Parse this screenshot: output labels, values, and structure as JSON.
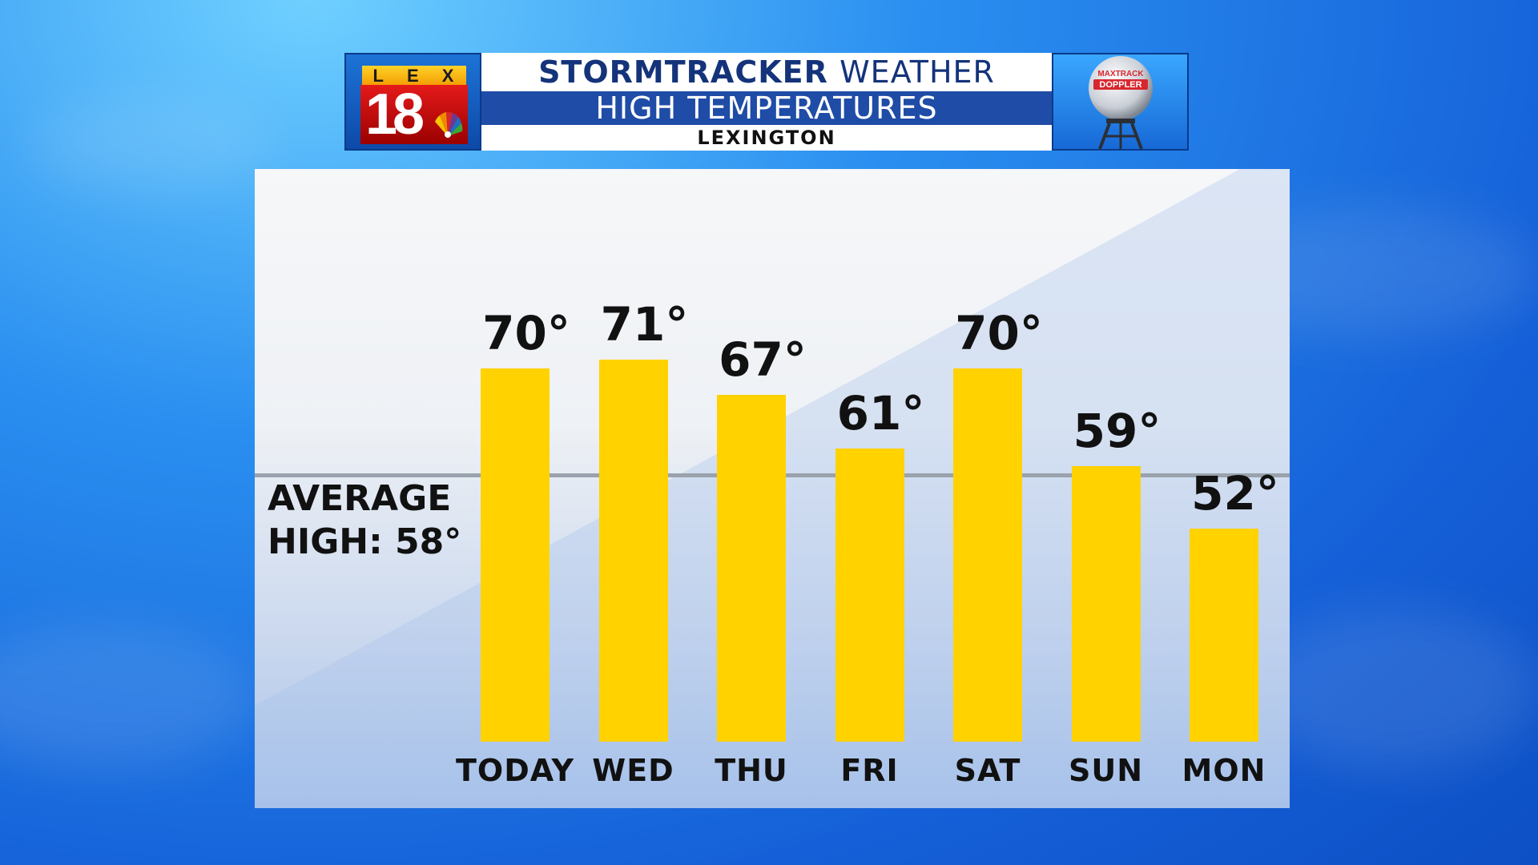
{
  "banner": {
    "logo_letters": [
      "L",
      "E",
      "X"
    ],
    "logo_number": "18",
    "title_bold": "STORMTRACKER",
    "title_light": "WEATHER",
    "subtitle": "HIGH TEMPERATURES",
    "location": "LEXINGTON",
    "radar_text_1": "MAXTRACK",
    "radar_text_2": "DOPPLER"
  },
  "average": {
    "label": "AVERAGE\nHIGH: 58°",
    "value": 58
  },
  "chart_data": {
    "type": "bar",
    "categories": [
      "TODAY",
      "WED",
      "THU",
      "FRI",
      "SAT",
      "SUN",
      "MON"
    ],
    "values": [
      70,
      71,
      67,
      61,
      70,
      59,
      52
    ],
    "value_labels": [
      "70°",
      "71°",
      "67°",
      "61°",
      "70°",
      "59°",
      "52°"
    ],
    "title": "HIGH TEMPERATURES",
    "reference_line": 58,
    "bar_color": "#ffd200",
    "grid": false
  },
  "colors": {
    "accent": "#1f4ca6",
    "bar": "#ffd200",
    "logo_red": "#e51a1a",
    "logo_yellow": "#ffd22a"
  }
}
